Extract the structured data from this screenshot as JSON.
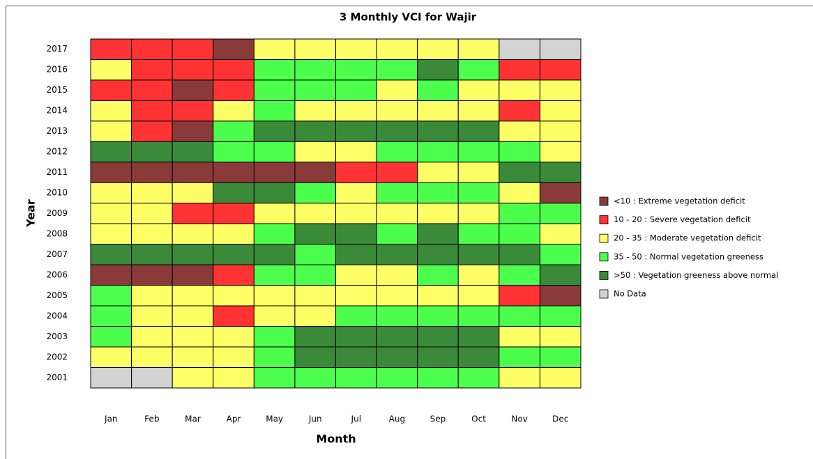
{
  "chart_data": {
    "type": "heatmap",
    "title": "3 Monthly VCI for Wajir",
    "x_label": "Month",
    "y_label": "Year",
    "categories": [
      "Jan",
      "Feb",
      "Mar",
      "Apr",
      "May",
      "Jun",
      "Jul",
      "Aug",
      "Sep",
      "Oct",
      "Nov",
      "Dec"
    ],
    "years": [
      "2017",
      "2016",
      "2015",
      "2014",
      "2013",
      "2012",
      "2011",
      "2010",
      "2009",
      "2008",
      "2007",
      "2006",
      "2005",
      "2004",
      "2003",
      "2002",
      "2001"
    ],
    "classes": [
      {
        "label": "<10 : Extreme vegetation deficit",
        "color": "#8b3a3a"
      },
      {
        "label": "10 - 20 : Severe vegetation deficit",
        "color": "#ff3333"
      },
      {
        "label": "20 - 35 : Moderate vegetation deficit",
        "color": "#ffff66"
      },
      {
        "label": "35 - 50 : Normal vegetation greeness",
        "color": "#4dff4d"
      },
      {
        "label": ">50 : Vegetation greeness above normal",
        "color": "#3a8a3a"
      },
      {
        "label": "No Data",
        "color": "#d3d3d3"
      }
    ],
    "z": [
      [
        1,
        1,
        1,
        0,
        2,
        2,
        2,
        2,
        2,
        2,
        5,
        5
      ],
      [
        2,
        1,
        1,
        1,
        3,
        3,
        3,
        3,
        4,
        3,
        1,
        1
      ],
      [
        1,
        1,
        0,
        1,
        3,
        3,
        3,
        2,
        3,
        2,
        2,
        2
      ],
      [
        2,
        1,
        1,
        2,
        3,
        2,
        2,
        2,
        2,
        2,
        1,
        2
      ],
      [
        2,
        1,
        0,
        3,
        4,
        4,
        4,
        4,
        4,
        4,
        2,
        2
      ],
      [
        4,
        4,
        4,
        3,
        3,
        2,
        2,
        3,
        3,
        3,
        3,
        2
      ],
      [
        0,
        0,
        0,
        0,
        0,
        0,
        1,
        1,
        2,
        2,
        4,
        4
      ],
      [
        2,
        2,
        2,
        4,
        4,
        3,
        2,
        3,
        3,
        3,
        2,
        0
      ],
      [
        2,
        2,
        1,
        1,
        2,
        2,
        2,
        2,
        2,
        2,
        3,
        3
      ],
      [
        2,
        2,
        2,
        2,
        3,
        4,
        4,
        3,
        4,
        3,
        3,
        2
      ],
      [
        4,
        4,
        4,
        4,
        4,
        3,
        4,
        4,
        4,
        4,
        4,
        3
      ],
      [
        0,
        0,
        0,
        1,
        3,
        3,
        2,
        2,
        3,
        2,
        3,
        4
      ],
      [
        3,
        2,
        2,
        2,
        2,
        2,
        2,
        2,
        2,
        2,
        1,
        0
      ],
      [
        3,
        2,
        2,
        1,
        2,
        2,
        3,
        3,
        3,
        3,
        3,
        3
      ],
      [
        3,
        2,
        2,
        2,
        3,
        4,
        4,
        4,
        4,
        4,
        2,
        2
      ],
      [
        2,
        2,
        2,
        2,
        3,
        4,
        4,
        4,
        4,
        4,
        3,
        3
      ],
      [
        5,
        5,
        2,
        2,
        3,
        3,
        3,
        3,
        3,
        3,
        2,
        2
      ]
    ]
  }
}
